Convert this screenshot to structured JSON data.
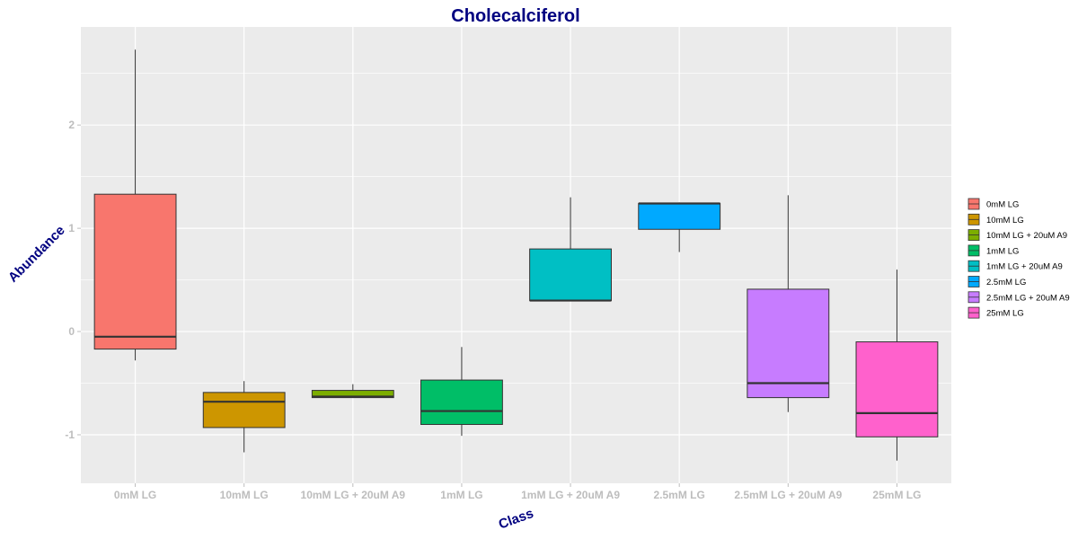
{
  "chart_data": {
    "type": "boxplot",
    "title": "Cholecalciferol",
    "xlabel": "Class",
    "ylabel": "Abundance",
    "ylim": [
      -1.47,
      2.95
    ],
    "yticks": [
      -1,
      0,
      1,
      2
    ],
    "grid": true,
    "legend_position": "right",
    "categories": [
      "0mM LG",
      "10mM LG",
      "10mM LG + 20uM A9",
      "1mM LG",
      "1mM LG + 20uM A9",
      "2.5mM LG",
      "2.5mM LG + 20uM A9",
      "25mM LG"
    ],
    "series": [
      {
        "name": "0mM LG",
        "color": "#F8766D",
        "min": -0.28,
        "q1": -0.17,
        "median": -0.05,
        "q3": 1.33,
        "max": 2.73
      },
      {
        "name": "10mM LG",
        "color": "#CD9600",
        "min": -1.17,
        "q1": -0.93,
        "median": -0.68,
        "q3": -0.59,
        "max": -0.48
      },
      {
        "name": "10mM LG + 20uM A9",
        "color": "#7CAE00",
        "min": -0.64,
        "q1": -0.64,
        "median": -0.63,
        "q3": -0.57,
        "max": -0.51
      },
      {
        "name": "1mM LG",
        "color": "#00BE67",
        "min": -1.01,
        "q1": -0.9,
        "median": -0.77,
        "q3": -0.47,
        "max": -0.15
      },
      {
        "name": "1mM LG + 20uM A9",
        "color": "#00BFC4",
        "min": 0.3,
        "q1": 0.3,
        "median": 0.3,
        "q3": 0.8,
        "max": 1.3
      },
      {
        "name": "2.5mM LG",
        "color": "#00A9FF",
        "min": 0.77,
        "q1": 0.99,
        "median": 1.24,
        "q3": 1.24,
        "max": 1.25
      },
      {
        "name": "2.5mM LG + 20uM A9",
        "color": "#C77CFF",
        "min": -0.78,
        "q1": -0.64,
        "median": -0.5,
        "q3": 0.41,
        "max": 1.32
      },
      {
        "name": "25mM LG",
        "color": "#FF61CC",
        "min": -1.25,
        "q1": -1.02,
        "median": -0.79,
        "q3": -0.1,
        "max": 0.6
      }
    ]
  }
}
